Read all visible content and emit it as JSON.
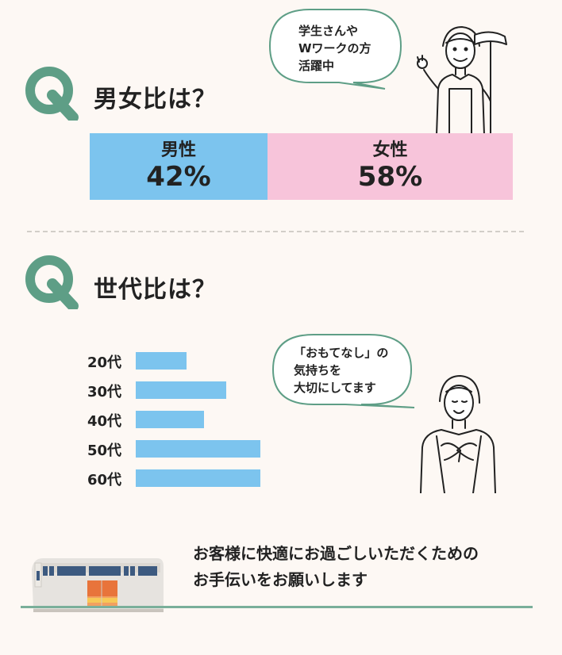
{
  "colors": {
    "male": "#7cc4ee",
    "female": "#f7c4da",
    "accent": "#5e9e86",
    "bar": "#7cc4ee"
  },
  "section1": {
    "q": "Q",
    "title": "男女比は？"
  },
  "bubble1": {
    "lines": [
      "学生さんや",
      "Wワークの方",
      "活躍中"
    ]
  },
  "section2": {
    "q": "Q",
    "title": "世代比は？"
  },
  "bubble2": {
    "lines": [
      "「おもてなし」の",
      "気持ちを",
      "大切にしてます"
    ]
  },
  "message": {
    "lines": [
      "お客様に快適にお過ごしいただくための",
      "お手伝いをお願いします"
    ]
  },
  "chart_data": [
    {
      "type": "bar",
      "orientation": "stacked-horizontal",
      "categories": [
        "男性",
        "女性"
      ],
      "values": [
        42,
        58
      ],
      "labels": [
        "42%",
        "58%"
      ],
      "unit": "%"
    },
    {
      "type": "bar",
      "orientation": "horizontal",
      "categories": [
        "20代",
        "30代",
        "40代",
        "50代",
        "60代"
      ],
      "values": [
        9,
        16,
        12,
        22,
        22
      ]
    }
  ]
}
